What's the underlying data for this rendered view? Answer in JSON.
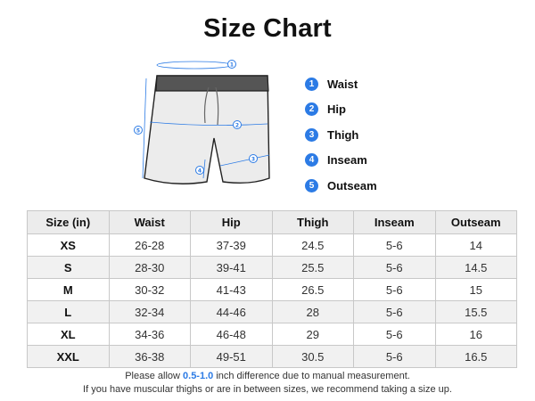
{
  "title": "Size Chart",
  "legend": [
    {
      "num": "1",
      "label": "Waist"
    },
    {
      "num": "2",
      "label": "Hip"
    },
    {
      "num": "3",
      "label": "Thigh"
    },
    {
      "num": "4",
      "label": "Inseam"
    },
    {
      "num": "5",
      "label": "Outseam"
    }
  ],
  "table": {
    "headers": [
      "Size (in)",
      "Waist",
      "Hip",
      "Thigh",
      "Inseam",
      "Outseam"
    ],
    "rows": [
      [
        "XS",
        "26-28",
        "37-39",
        "24.5",
        "5-6",
        "14"
      ],
      [
        "S",
        "28-30",
        "39-41",
        "25.5",
        "5-6",
        "14.5"
      ],
      [
        "M",
        "30-32",
        "41-43",
        "26.5",
        "5-6",
        "15"
      ],
      [
        "L",
        "32-34",
        "44-46",
        "28",
        "5-6",
        "15.5"
      ],
      [
        "XL",
        "34-36",
        "46-48",
        "29",
        "5-6",
        "16"
      ],
      [
        "XXL",
        "36-38",
        "49-51",
        "30.5",
        "5-6",
        "16.5"
      ]
    ]
  },
  "notes": {
    "line1_before": "Please allow ",
    "line1_highlight": "0.5-1.0",
    "line1_after": " inch difference due to manual measurement.",
    "line2": "If you have muscular thighs or are in between sizes, we recommend taking a size up."
  },
  "colors": {
    "accent": "#2c7be5",
    "header_bg": "#ececec",
    "alt_row_bg": "#f1f1f1"
  }
}
